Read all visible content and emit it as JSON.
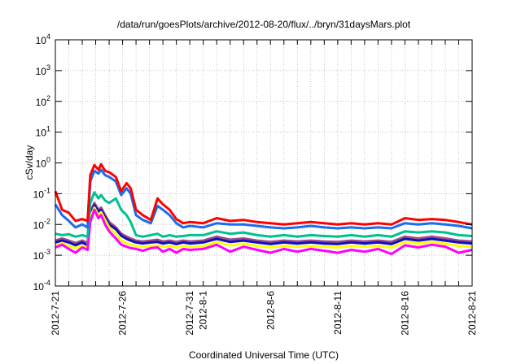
{
  "chart_data": {
    "type": "line",
    "title": "/data/run/goesPlots/archive/2012-08-20/flux/../bryn/31daysMars.plot",
    "xlabel": "Coordinated Universal Time (UTC)",
    "ylabel": "cSv/day",
    "yscale": "log",
    "ylim": [
      0.0001,
      10000
    ],
    "yticks": [
      {
        "value": 10000,
        "base": "10",
        "exp": "4"
      },
      {
        "value": 1000,
        "base": "10",
        "exp": "3"
      },
      {
        "value": 100,
        "base": "10",
        "exp": "2"
      },
      {
        "value": 10,
        "base": "10",
        "exp": "1"
      },
      {
        "value": 1,
        "base": "10",
        "exp": "0"
      },
      {
        "value": 0.1,
        "base": "10",
        "exp": "-1"
      },
      {
        "value": 0.01,
        "base": "10",
        "exp": "-2"
      },
      {
        "value": 0.001,
        "base": "10",
        "exp": "-3"
      },
      {
        "value": 0.0001,
        "base": "10",
        "exp": "-4"
      }
    ],
    "x_unit": "days since 2012-7-21",
    "xlim": [
      0,
      31
    ],
    "xticks": [
      {
        "day": 0,
        "label": "2012-7-21"
      },
      {
        "day": 5,
        "label": "2012-7-26"
      },
      {
        "day": 10,
        "label": "2012-7-31"
      },
      {
        "day": 11,
        "label": "2012-8-1"
      },
      {
        "day": 16,
        "label": "2012-8-6"
      },
      {
        "day": 21,
        "label": "2012-8-11"
      },
      {
        "day": 26,
        "label": "2012-8-16"
      },
      {
        "day": 31,
        "label": "2012-8-21"
      }
    ],
    "grid": true,
    "x": [
      0,
      0.5,
      1,
      1.5,
      2,
      2.4,
      2.6,
      2.9,
      3.2,
      3.4,
      3.7,
      4,
      4.5,
      4.9,
      5.3,
      5.6,
      6,
      6.5,
      7.1,
      7.6,
      8,
      8.5,
      9,
      9.5,
      10,
      11,
      12,
      13,
      14,
      15,
      16,
      17,
      18,
      19,
      20,
      21,
      22,
      23,
      24,
      25,
      26,
      27,
      28,
      29,
      30,
      31
    ],
    "series": [
      {
        "name": "purple",
        "color": "#9a4a86",
        "values": [
          0.003,
          0.0035,
          0.003,
          0.0025,
          0.003,
          0.0025,
          0.025,
          0.05,
          0.03,
          0.035,
          0.02,
          0.012,
          0.008,
          0.005,
          0.004,
          0.0035,
          0.003,
          0.0028,
          0.003,
          0.0032,
          0.0028,
          0.003,
          0.0027,
          0.003,
          0.0028,
          0.003,
          0.004,
          0.0032,
          0.0035,
          0.003,
          0.0027,
          0.003,
          0.0028,
          0.003,
          0.0028,
          0.0027,
          0.003,
          0.0028,
          0.003,
          0.0027,
          0.004,
          0.0035,
          0.004,
          0.0035,
          0.003,
          0.0028
        ]
      },
      {
        "name": "dark-blue",
        "color": "#1010c0",
        "values": [
          0.0026,
          0.003,
          0.0026,
          0.0021,
          0.0026,
          0.0021,
          0.021,
          0.042,
          0.026,
          0.03,
          0.017,
          0.01,
          0.007,
          0.0043,
          0.0034,
          0.003,
          0.0026,
          0.0024,
          0.0026,
          0.0027,
          0.0024,
          0.0026,
          0.0023,
          0.0026,
          0.0024,
          0.0026,
          0.0034,
          0.0027,
          0.003,
          0.0026,
          0.0023,
          0.0026,
          0.0024,
          0.0026,
          0.0024,
          0.0023,
          0.0026,
          0.0024,
          0.0026,
          0.0023,
          0.0034,
          0.003,
          0.0034,
          0.003,
          0.0026,
          0.0024
        ]
      },
      {
        "name": "yellow",
        "color": "#ffff00",
        "values": [
          0.002,
          0.0025,
          0.002,
          0.0017,
          0.002,
          0.0017,
          0.017,
          0.035,
          0.02,
          0.025,
          0.014,
          0.008,
          0.005,
          0.003,
          0.0025,
          0.0022,
          0.002,
          0.0019,
          0.002,
          0.0021,
          0.0019,
          0.002,
          0.0018,
          0.002,
          0.0019,
          0.002,
          0.0027,
          0.0021,
          0.0024,
          0.002,
          0.0018,
          0.002,
          0.0019,
          0.002,
          0.0019,
          0.0018,
          0.002,
          0.0019,
          0.002,
          0.0018,
          0.0027,
          0.0024,
          0.0027,
          0.0024,
          0.002,
          0.0019
        ]
      },
      {
        "name": "magenta",
        "color": "#ff00ff",
        "values": [
          0.0018,
          0.0022,
          0.0016,
          0.0012,
          0.0018,
          0.0015,
          0.012,
          0.03,
          0.016,
          0.02,
          0.01,
          0.006,
          0.0035,
          0.0022,
          0.0019,
          0.0017,
          0.0016,
          0.0014,
          0.0017,
          0.0018,
          0.0013,
          0.0016,
          0.0012,
          0.0016,
          0.0015,
          0.0016,
          0.0022,
          0.0013,
          0.0019,
          0.0015,
          0.0012,
          0.0016,
          0.0013,
          0.0016,
          0.0014,
          0.0012,
          0.0015,
          0.0013,
          0.0016,
          0.0011,
          0.0021,
          0.0018,
          0.0022,
          0.0019,
          0.0012,
          0.0015
        ]
      },
      {
        "name": "teal",
        "color": "#00c090",
        "values": [
          0.005,
          0.0045,
          0.0048,
          0.004,
          0.0045,
          0.004,
          0.05,
          0.11,
          0.07,
          0.09,
          0.06,
          0.05,
          0.07,
          0.03,
          0.02,
          0.012,
          0.0045,
          0.004,
          0.0045,
          0.005,
          0.004,
          0.0045,
          0.004,
          0.0042,
          0.0045,
          0.0045,
          0.006,
          0.005,
          0.0055,
          0.0045,
          0.004,
          0.0045,
          0.004,
          0.0045,
          0.0042,
          0.004,
          0.0045,
          0.004,
          0.0045,
          0.004,
          0.006,
          0.0055,
          0.006,
          0.0055,
          0.0045,
          0.0042
        ]
      },
      {
        "name": "blue",
        "color": "#1a6cf0",
        "values": [
          0.045,
          0.02,
          0.013,
          0.008,
          0.01,
          0.008,
          0.25,
          0.55,
          0.45,
          0.6,
          0.4,
          0.35,
          0.25,
          0.09,
          0.15,
          0.1,
          0.02,
          0.014,
          0.011,
          0.04,
          0.03,
          0.02,
          0.011,
          0.008,
          0.009,
          0.008,
          0.011,
          0.01,
          0.01,
          0.009,
          0.008,
          0.0075,
          0.008,
          0.009,
          0.008,
          0.0075,
          0.008,
          0.0075,
          0.008,
          0.0075,
          0.011,
          0.01,
          0.011,
          0.01,
          0.009,
          0.0075
        ]
      },
      {
        "name": "red",
        "color": "#ff0000",
        "values": [
          0.12,
          0.03,
          0.024,
          0.013,
          0.015,
          0.013,
          0.4,
          0.85,
          0.6,
          0.9,
          0.55,
          0.5,
          0.35,
          0.12,
          0.22,
          0.15,
          0.03,
          0.02,
          0.014,
          0.07,
          0.045,
          0.03,
          0.015,
          0.011,
          0.012,
          0.011,
          0.016,
          0.013,
          0.014,
          0.012,
          0.011,
          0.01,
          0.011,
          0.012,
          0.011,
          0.01,
          0.011,
          0.01,
          0.011,
          0.01,
          0.016,
          0.014,
          0.015,
          0.014,
          0.012,
          0.01
        ]
      }
    ]
  }
}
